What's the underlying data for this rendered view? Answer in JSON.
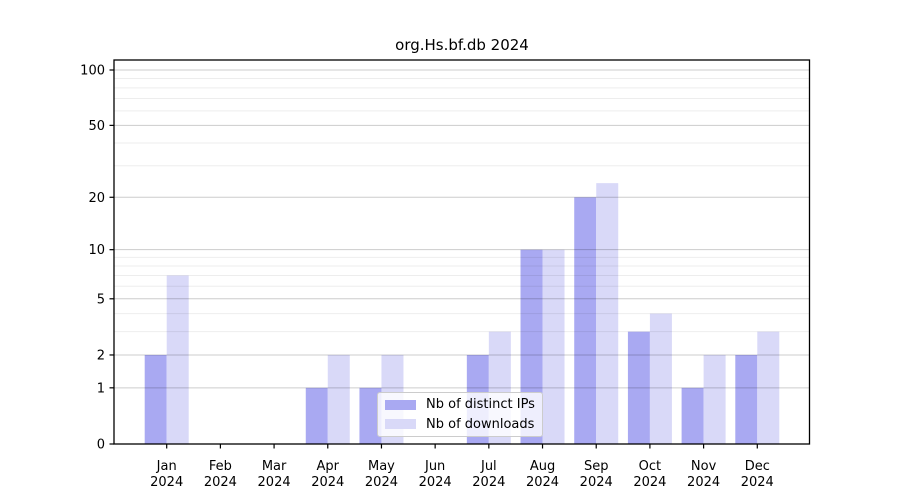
{
  "chart_data": {
    "type": "bar",
    "title": "org.Hs.bf.db 2024",
    "categories": [
      {
        "month": "Jan",
        "year": "2024"
      },
      {
        "month": "Feb",
        "year": "2024"
      },
      {
        "month": "Mar",
        "year": "2024"
      },
      {
        "month": "Apr",
        "year": "2024"
      },
      {
        "month": "May",
        "year": "2024"
      },
      {
        "month": "Jun",
        "year": "2024"
      },
      {
        "month": "Jul",
        "year": "2024"
      },
      {
        "month": "Aug",
        "year": "2024"
      },
      {
        "month": "Sep",
        "year": "2024"
      },
      {
        "month": "Oct",
        "year": "2024"
      },
      {
        "month": "Nov",
        "year": "2024"
      },
      {
        "month": "Dec",
        "year": "2024"
      }
    ],
    "series": [
      {
        "name": "Nb of distinct IPs",
        "color": "#a9a9f2",
        "values": [
          2,
          0,
          0,
          1,
          1,
          0,
          2,
          10,
          20,
          3,
          1,
          2
        ]
      },
      {
        "name": "Nb of downloads",
        "color": "#d9d9f8",
        "values": [
          7,
          0,
          0,
          2,
          2,
          0,
          3,
          10,
          24,
          4,
          2,
          3
        ]
      }
    ],
    "y_axis": {
      "scale": "log1p",
      "major_ticks": [
        0,
        1,
        2,
        5,
        10,
        20,
        50,
        100
      ],
      "minor_gridlines": [
        3,
        4,
        6,
        7,
        8,
        9,
        30,
        40,
        60,
        70,
        80,
        90
      ],
      "top_value": 100
    },
    "legend": {
      "location": "inside-bottom-right"
    },
    "grid": true
  }
}
